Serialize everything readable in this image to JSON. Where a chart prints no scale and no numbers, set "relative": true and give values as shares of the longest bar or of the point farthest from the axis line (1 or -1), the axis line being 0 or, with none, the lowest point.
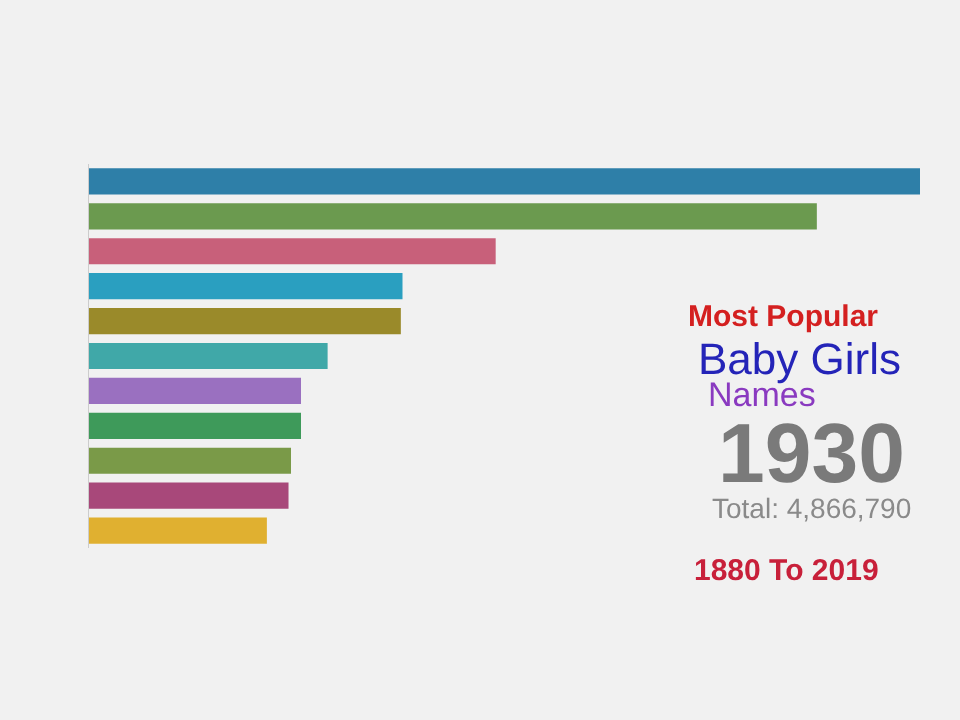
{
  "chart_data": {
    "type": "bar",
    "orientation": "horizontal",
    "relative": true,
    "categories": [
      null,
      null,
      null,
      null,
      null,
      null,
      null,
      null,
      null,
      null,
      null
    ],
    "values": [
      1,
      0.876,
      0.49,
      0.378,
      0.376,
      0.288,
      0.256,
      0.256,
      0.244,
      0.241,
      0.215
    ],
    "colors": [
      "#2e7fa8",
      "#6b9a4f",
      "#c8607a",
      "#2a9fc0",
      "#9a8a2a",
      "#40a8a8",
      "#9a70c0",
      "#3e9a5a",
      "#7a9a48",
      "#a8487a",
      "#e0b030"
    ],
    "annotations": [
      "Most Popular",
      "Baby Girls",
      "Names",
      "1930",
      "Total: 4,866,790",
      "1880 To 2019"
    ]
  }
}
